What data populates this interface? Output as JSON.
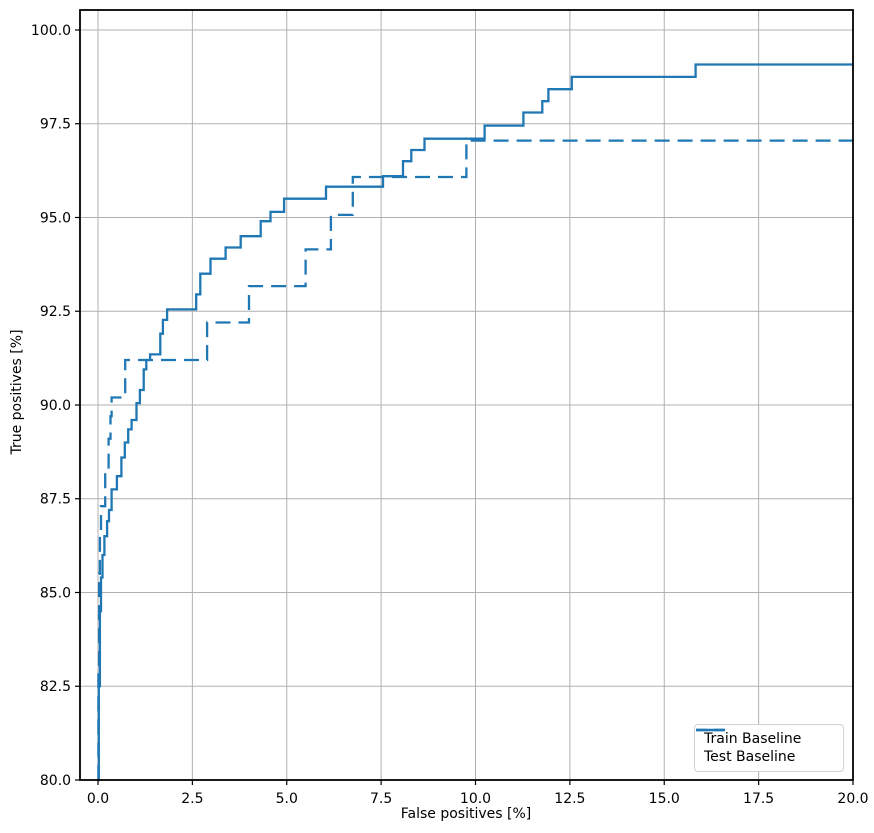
{
  "figure": {
    "background": "#ffffff",
    "line_color": "#1f77b4",
    "grid_color": "#b0b0b0",
    "spine_color": "#000000",
    "text_color": "#000000"
  },
  "chart_data": {
    "type": "line",
    "subtype": "step-post-roc-curve",
    "title": "",
    "xlabel": "False positives [%]",
    "ylabel": "True positives [%]",
    "xlim": [
      -0.477,
      20.0
    ],
    "ylim": [
      80.0,
      100.533
    ],
    "grid": true,
    "legend_position": "lower right",
    "x_ticks": {
      "values": [
        0.0,
        2.5,
        5.0,
        7.5,
        10.0,
        12.5,
        15.0,
        17.5,
        20.0
      ],
      "labels": [
        "0.0",
        "2.5",
        "5.0",
        "7.5",
        "10.0",
        "12.5",
        "15.0",
        "17.5",
        "20.0"
      ]
    },
    "y_ticks": {
      "values": [
        80.0,
        82.5,
        85.0,
        87.5,
        90.0,
        92.5,
        95.0,
        97.5,
        100.0
      ],
      "labels": [
        "80.0",
        "82.5",
        "85.0",
        "87.5",
        "90.0",
        "92.5",
        "95.0",
        "97.5",
        "100.0"
      ]
    },
    "series": [
      {
        "name": "Train Baseline",
        "style": "solid",
        "points": [
          [
            0.0,
            80.0
          ],
          [
            0.02,
            82.5
          ],
          [
            0.05,
            84.5
          ],
          [
            0.08,
            85.4
          ],
          [
            0.12,
            86.0
          ],
          [
            0.17,
            86.5
          ],
          [
            0.24,
            86.9
          ],
          [
            0.29,
            87.2
          ],
          [
            0.36,
            87.75
          ],
          [
            0.5,
            88.1
          ],
          [
            0.62,
            88.6
          ],
          [
            0.71,
            89.0
          ],
          [
            0.8,
            89.35
          ],
          [
            0.89,
            89.6
          ],
          [
            1.02,
            90.05
          ],
          [
            1.11,
            90.4
          ],
          [
            1.21,
            90.95
          ],
          [
            1.28,
            91.2
          ],
          [
            1.38,
            91.35
          ],
          [
            1.65,
            91.9
          ],
          [
            1.72,
            92.27
          ],
          [
            1.83,
            92.55
          ],
          [
            2.6,
            92.95
          ],
          [
            2.71,
            93.5
          ],
          [
            2.98,
            93.9
          ],
          [
            3.38,
            94.2
          ],
          [
            3.78,
            94.5
          ],
          [
            4.31,
            94.9
          ],
          [
            4.57,
            95.15
          ],
          [
            4.93,
            95.5
          ],
          [
            6.04,
            95.82
          ],
          [
            7.55,
            96.1
          ],
          [
            8.08,
            96.5
          ],
          [
            8.3,
            96.8
          ],
          [
            8.65,
            97.1
          ],
          [
            10.24,
            97.45
          ],
          [
            11.27,
            97.8
          ],
          [
            11.77,
            98.1
          ],
          [
            11.93,
            98.42
          ],
          [
            12.55,
            98.75
          ],
          [
            15.83,
            99.08
          ],
          [
            20.0,
            99.08
          ]
        ]
      },
      {
        "name": "Test Baseline",
        "style": "dashed",
        "points": [
          [
            0.0,
            80.0
          ],
          [
            0.01,
            83.0
          ],
          [
            0.03,
            85.5
          ],
          [
            0.05,
            86.6
          ],
          [
            0.08,
            87.3
          ],
          [
            0.19,
            88.3
          ],
          [
            0.28,
            89.1
          ],
          [
            0.33,
            89.7
          ],
          [
            0.36,
            90.2
          ],
          [
            0.72,
            91.2
          ],
          [
            2.89,
            92.2
          ],
          [
            4.0,
            93.17
          ],
          [
            5.5,
            94.15
          ],
          [
            6.17,
            95.07
          ],
          [
            6.75,
            96.08
          ],
          [
            9.76,
            97.05
          ],
          [
            20.0,
            97.05
          ]
        ]
      }
    ]
  }
}
